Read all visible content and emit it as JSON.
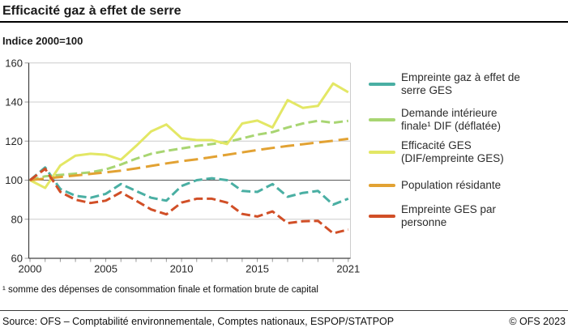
{
  "header": {
    "title": "Efficacité gaz à effet de serre",
    "unit_label": "Indice 2000=100"
  },
  "footnote": {
    "text": "¹ somme des dépenses de consommation finale et formation brute de capital"
  },
  "footer": {
    "source": "Source: OFS – Comptabilité environnementale, Comptes nationaux, ESPOP/STATPOP",
    "copyright": "© OFS 2023"
  },
  "colors": {
    "axis": "#404040",
    "grid": "#cccccc",
    "grid_baseline": "#595959",
    "tick": "#999999",
    "tick_label": "#262626"
  },
  "chart_data": {
    "type": "line",
    "title": "Efficacité gaz à effet de serre",
    "subtitle": "Indice 2000=100",
    "xlabel": "",
    "ylabel": "Indice 2000=100",
    "ylim": [
      60,
      160
    ],
    "y_ticks": [
      60,
      80,
      100,
      120,
      140,
      160
    ],
    "baseline": 100,
    "grid": true,
    "legend_position": "right",
    "x": [
      2000,
      2001,
      2002,
      2003,
      2004,
      2005,
      2006,
      2007,
      2008,
      2009,
      2010,
      2011,
      2012,
      2013,
      2014,
      2015,
      2016,
      2017,
      2018,
      2019,
      2020,
      2021
    ],
    "x_tick_labels": [
      "2000",
      "2005",
      "2010",
      "2015",
      "2021"
    ],
    "x_tick_years": [
      2000,
      2005,
      2010,
      2015,
      2021
    ],
    "series": [
      {
        "id": "empreinte-ges",
        "name": "Empreinte gaz à effet de serre GES",
        "legend_lines": [
          "Empreinte gaz à effet de",
          "serre GES"
        ],
        "color": "#4aafa3",
        "dash": "11 5",
        "values": [
          100,
          106.5,
          95.5,
          92,
          91,
          93,
          98,
          94.5,
          91,
          89.5,
          97,
          100,
          101,
          100,
          94.5,
          94,
          98,
          91.5,
          93.5,
          94.5,
          87.5,
          90.5
        ]
      },
      {
        "id": "dif-deflatee",
        "name": "Demande intérieure finale¹ DIF (déflatée)",
        "legend_lines": [
          "Demande intérieure",
          "finale¹ DIF (déflatée)"
        ],
        "color": "#a8d572",
        "dash": "11 5",
        "values": [
          100,
          102,
          102.7,
          103.3,
          104,
          105.5,
          108,
          111,
          113.5,
          115,
          116.2,
          117.5,
          118.5,
          119.5,
          121.4,
          123.3,
          124.6,
          127,
          129,
          130.4,
          129.4,
          130.4
        ]
      },
      {
        "id": "efficacite-ges",
        "name": "Efficacité GES (DIF/empreinte GES)",
        "legend_lines": [
          "Efficacité GES",
          "(DIF/empreinte GES)"
        ],
        "color": "#e3e765",
        "dash": null,
        "values": [
          100,
          96,
          107.5,
          112.5,
          113.5,
          113,
          110.5,
          117.5,
          125,
          128.5,
          121.5,
          120.5,
          120.5,
          118.5,
          129,
          130.5,
          127,
          141,
          137,
          138,
          149.5,
          145
        ]
      },
      {
        "id": "population",
        "name": "Population résidante",
        "legend_lines": [
          "Population résidante"
        ],
        "color": "#e2a233",
        "dash": "17 7",
        "values": [
          100,
          100.8,
          101.6,
          102.4,
          103.2,
          104,
          104.9,
          106,
          107.3,
          108.6,
          109.7,
          110.7,
          111.8,
          113,
          114.2,
          115.4,
          116.5,
          117.5,
          118.4,
          119.3,
          120.2,
          121.2
        ]
      },
      {
        "id": "empreinte-par-personne",
        "name": "Empreinte GES par personne",
        "legend_lines": [
          "Empreinte GES par",
          "personne"
        ],
        "color": "#d14f27",
        "dash": "11 5",
        "values": [
          100,
          105.8,
          94,
          90,
          88.3,
          89.5,
          93.8,
          89.5,
          85,
          82.5,
          88.5,
          90.5,
          90.5,
          88.5,
          82.7,
          81.4,
          84,
          78,
          79,
          79.2,
          72.8,
          74.7
        ]
      }
    ]
  }
}
